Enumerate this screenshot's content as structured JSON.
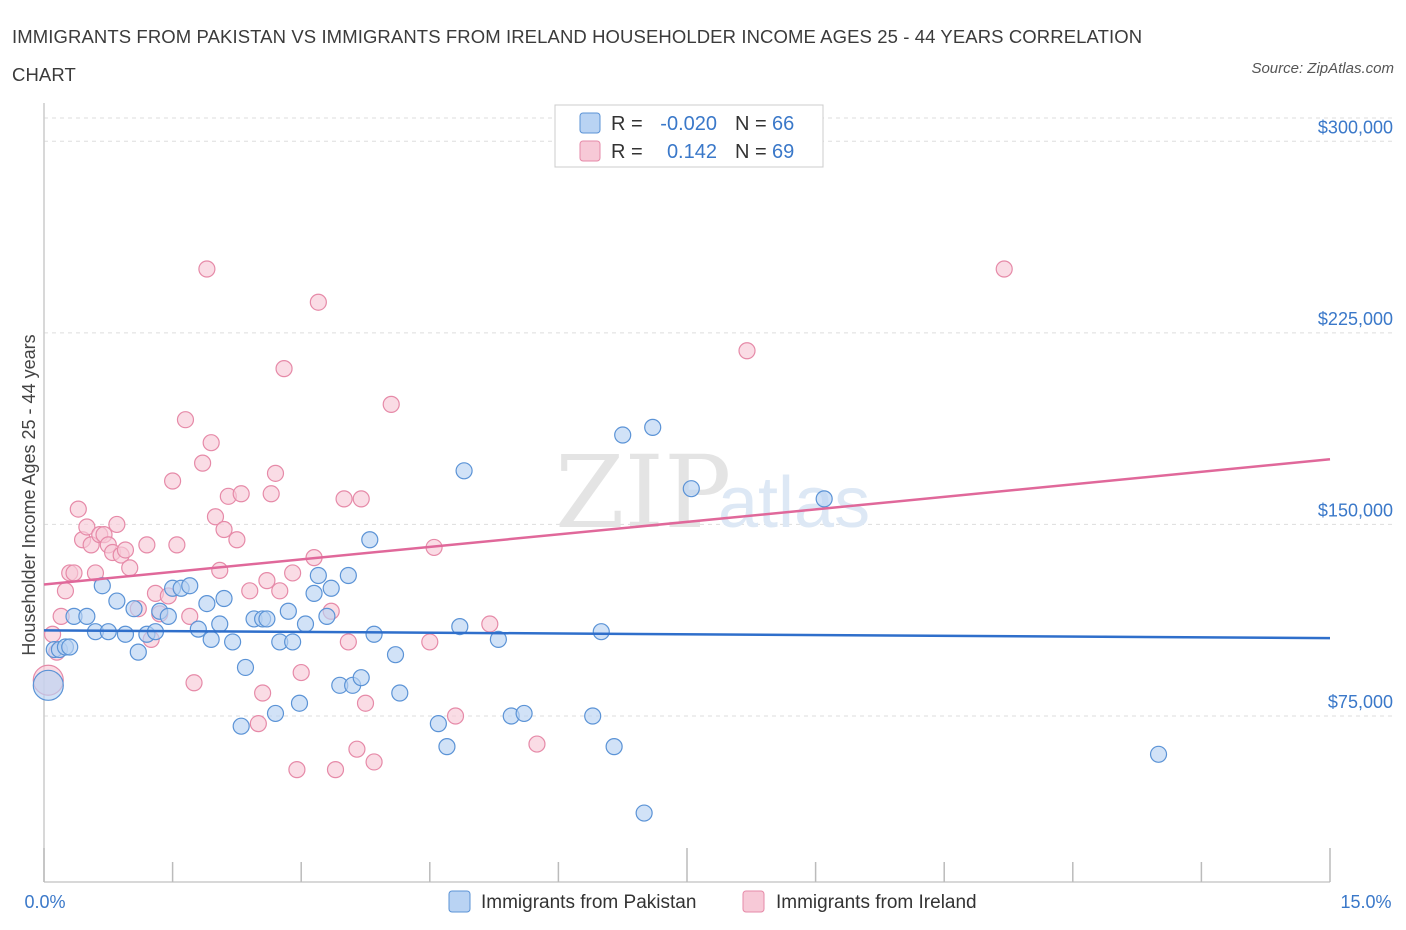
{
  "title": "IMMIGRANTS FROM PAKISTAN VS IMMIGRANTS FROM IRELAND HOUSEHOLDER INCOME AGES 25 - 44 YEARS CORRELATION CHART",
  "source": "Source: ZipAtlas.com",
  "watermark": {
    "zip": "ZIP",
    "atlas": "atlas"
  },
  "colors": {
    "blue_fill": "#b9d3f3",
    "blue_stroke": "#5b93d6",
    "blue_line": "#2f6fcb",
    "pink_fill": "#f7c9d7",
    "pink_stroke": "#e68aa8",
    "pink_line": "#e0689a",
    "tick_text": "#3a78c9",
    "grid": "#dddddd"
  },
  "legend": {
    "rows": [
      {
        "r_label": "R =",
        "r_value": "-0.020",
        "n_label": "N =",
        "n_value": "66"
      },
      {
        "r_label": "R =",
        "r_value": "0.142",
        "n_label": "N =",
        "n_value": "69"
      }
    ]
  },
  "chart_data": {
    "type": "scatter",
    "title": "IMMIGRANTS FROM PAKISTAN VS IMMIGRANTS FROM IRELAND HOUSEHOLDER INCOME AGES 25 - 44 YEARS CORRELATION CHART",
    "xlabel": "",
    "ylabel": "Householder Income Ages 25 - 44 years",
    "xlim": [
      0,
      15
    ],
    "ylim": [
      10000,
      315000
    ],
    "x_tick_labels": [
      "0.0%",
      "15.0%"
    ],
    "y_ticks": [
      {
        "value": 75000,
        "label": "$75,000"
      },
      {
        "value": 150000,
        "label": "$150,000"
      },
      {
        "value": 225000,
        "label": "$225,000"
      },
      {
        "value": 300000,
        "label": "$300,000"
      }
    ],
    "grid": "horizontal dashed",
    "legend_position": "top-center",
    "series": [
      {
        "name": "Immigrants from Pakistan",
        "color": "blue",
        "trend": [
          [
            0,
            108500
          ],
          [
            15,
            105500
          ]
        ],
        "points": [
          [
            0.05,
            87000
          ],
          [
            0.12,
            101000
          ],
          [
            0.18,
            101000
          ],
          [
            0.25,
            102000
          ],
          [
            0.3,
            102000
          ],
          [
            0.35,
            114000
          ],
          [
            0.5,
            114000
          ],
          [
            0.6,
            108000
          ],
          [
            0.68,
            126000
          ],
          [
            0.75,
            108000
          ],
          [
            0.85,
            120000
          ],
          [
            0.95,
            107000
          ],
          [
            1.05,
            117000
          ],
          [
            1.1,
            100000
          ],
          [
            1.2,
            107000
          ],
          [
            1.3,
            108000
          ],
          [
            1.35,
            116000
          ],
          [
            1.45,
            114000
          ],
          [
            1.5,
            125000
          ],
          [
            1.6,
            125000
          ],
          [
            1.7,
            126000
          ],
          [
            1.8,
            109000
          ],
          [
            1.9,
            119000
          ],
          [
            1.95,
            105000
          ],
          [
            2.05,
            111000
          ],
          [
            2.1,
            121000
          ],
          [
            2.2,
            104000
          ],
          [
            2.3,
            71000
          ],
          [
            2.35,
            94000
          ],
          [
            2.45,
            113000
          ],
          [
            2.55,
            113000
          ],
          [
            2.6,
            113000
          ],
          [
            2.7,
            76000
          ],
          [
            2.75,
            104000
          ],
          [
            2.85,
            116000
          ],
          [
            2.9,
            104000
          ],
          [
            2.98,
            80000
          ],
          [
            3.05,
            111000
          ],
          [
            3.15,
            123000
          ],
          [
            3.2,
            130000
          ],
          [
            3.3,
            114000
          ],
          [
            3.35,
            125000
          ],
          [
            3.45,
            87000
          ],
          [
            3.55,
            130000
          ],
          [
            3.6,
            87000
          ],
          [
            3.7,
            90000
          ],
          [
            3.8,
            144000
          ],
          [
            3.85,
            107000
          ],
          [
            4.1,
            99000
          ],
          [
            4.15,
            84000
          ],
          [
            4.6,
            72000
          ],
          [
            4.7,
            63000
          ],
          [
            4.9,
            171000
          ],
          [
            4.85,
            110000
          ],
          [
            5.3,
            105000
          ],
          [
            5.45,
            75000
          ],
          [
            5.6,
            76000
          ],
          [
            6.4,
            75000
          ],
          [
            6.5,
            108000
          ],
          [
            6.65,
            63000
          ],
          [
            6.75,
            185000
          ],
          [
            7.0,
            37000
          ],
          [
            7.1,
            188000
          ],
          [
            7.55,
            164000
          ],
          [
            9.1,
            160000
          ],
          [
            13.0,
            60000
          ]
        ]
      },
      {
        "name": "Immigrants from Ireland",
        "color": "pink",
        "trend": [
          [
            0,
            126500
          ],
          [
            15,
            175500
          ]
        ],
        "points": [
          [
            0.05,
            89000
          ],
          [
            0.1,
            107000
          ],
          [
            0.15,
            100000
          ],
          [
            0.2,
            114000
          ],
          [
            0.25,
            124000
          ],
          [
            0.3,
            131000
          ],
          [
            0.35,
            131000
          ],
          [
            0.4,
            156000
          ],
          [
            0.45,
            144000
          ],
          [
            0.5,
            149000
          ],
          [
            0.55,
            142000
          ],
          [
            0.6,
            131000
          ],
          [
            0.65,
            146000
          ],
          [
            0.7,
            146000
          ],
          [
            0.75,
            142000
          ],
          [
            0.8,
            139000
          ],
          [
            0.85,
            150000
          ],
          [
            0.9,
            138000
          ],
          [
            0.95,
            140000
          ],
          [
            1.0,
            133000
          ],
          [
            1.1,
            117000
          ],
          [
            1.2,
            142000
          ],
          [
            1.25,
            105000
          ],
          [
            1.3,
            123000
          ],
          [
            1.35,
            115000
          ],
          [
            1.45,
            122000
          ],
          [
            1.5,
            167000
          ],
          [
            1.55,
            142000
          ],
          [
            1.65,
            191000
          ],
          [
            1.7,
            114000
          ],
          [
            1.75,
            88000
          ],
          [
            1.85,
            174000
          ],
          [
            1.9,
            250000
          ],
          [
            1.95,
            182000
          ],
          [
            2.0,
            153000
          ],
          [
            2.05,
            132000
          ],
          [
            2.1,
            148000
          ],
          [
            2.15,
            161000
          ],
          [
            2.25,
            144000
          ],
          [
            2.3,
            162000
          ],
          [
            2.4,
            124000
          ],
          [
            2.5,
            72000
          ],
          [
            2.55,
            84000
          ],
          [
            2.6,
            128000
          ],
          [
            2.65,
            162000
          ],
          [
            2.7,
            170000
          ],
          [
            2.75,
            124000
          ],
          [
            2.8,
            211000
          ],
          [
            2.9,
            131000
          ],
          [
            2.95,
            54000
          ],
          [
            3.0,
            92000
          ],
          [
            3.15,
            137000
          ],
          [
            3.2,
            237000
          ],
          [
            3.35,
            116000
          ],
          [
            3.4,
            54000
          ],
          [
            3.5,
            160000
          ],
          [
            3.55,
            104000
          ],
          [
            3.65,
            62000
          ],
          [
            3.7,
            160000
          ],
          [
            3.75,
            80000
          ],
          [
            3.85,
            57000
          ],
          [
            4.05,
            197000
          ],
          [
            4.5,
            104000
          ],
          [
            4.55,
            141000
          ],
          [
            4.8,
            75000
          ],
          [
            5.2,
            111000
          ],
          [
            5.75,
            64000
          ],
          [
            8.2,
            218000
          ],
          [
            11.2,
            250000
          ]
        ]
      }
    ]
  }
}
